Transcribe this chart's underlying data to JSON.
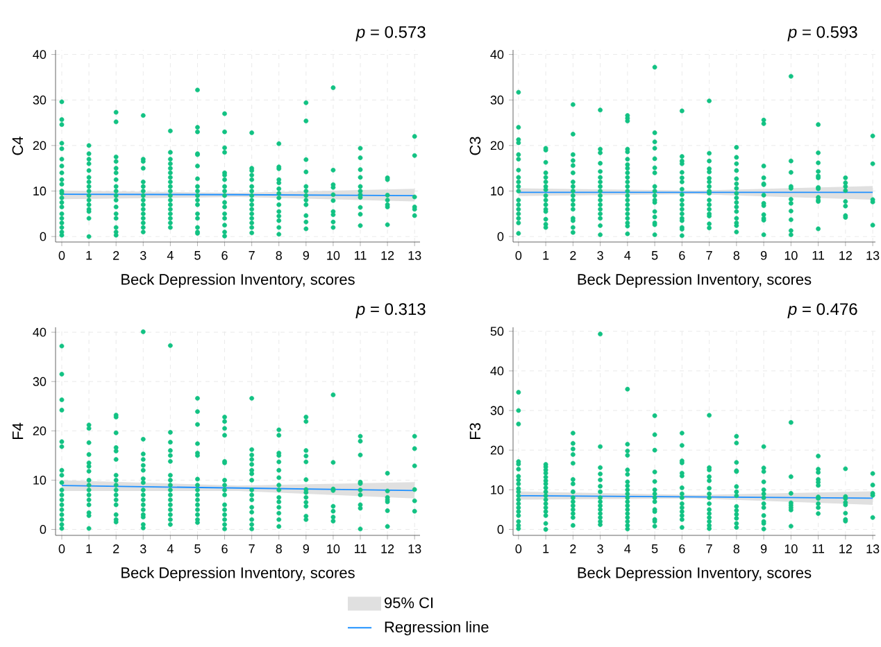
{
  "chart_data": [
    {
      "type": "scatter",
      "xlabel": "Beck Depression Inventory, scores",
      "ylabel": "C4",
      "annotations": [
        "*p* = 0.573"
      ],
      "xlim": [
        -0.23,
        13.2
      ],
      "ylim": [
        -1.2,
        41
      ],
      "xticks": [
        0,
        1,
        2,
        3,
        4,
        5,
        6,
        7,
        8,
        9,
        10,
        11,
        12,
        13
      ],
      "yticks": [
        0,
        10,
        20,
        30,
        40
      ],
      "grid": true,
      "series": [
        {
          "color": "#12c283",
          "x": [
            0,
            0,
            0,
            0,
            0,
            0,
            0,
            0,
            0,
            0,
            0,
            0,
            0,
            0,
            0,
            0,
            0,
            0,
            0,
            0,
            0,
            1,
            1,
            1,
            1,
            1,
            1,
            1,
            1,
            1,
            1,
            1,
            1,
            1,
            1,
            1,
            1,
            2,
            2,
            2,
            2,
            2,
            2,
            2,
            2,
            2,
            2,
            2,
            2,
            2,
            2,
            2,
            2,
            2,
            3,
            3,
            3,
            3,
            3,
            3,
            3,
            3,
            3,
            3,
            3,
            3,
            3,
            3,
            3,
            3,
            4,
            4,
            4,
            4,
            4,
            4,
            4,
            4,
            4,
            4,
            4,
            4,
            4,
            4,
            4,
            4,
            4,
            4,
            5,
            5,
            5,
            5,
            5,
            5,
            5,
            5,
            5,
            5,
            5,
            5,
            5,
            5,
            5,
            5,
            5,
            6,
            6,
            6,
            6,
            6,
            6,
            6,
            6,
            6,
            6,
            6,
            6,
            6,
            6,
            6,
            6,
            6,
            7,
            7,
            7,
            7,
            7,
            7,
            7,
            7,
            7,
            7,
            7,
            7,
            7,
            7,
            7,
            7,
            8,
            8,
            8,
            8,
            8,
            8,
            8,
            8,
            8,
            8,
            8,
            8,
            8,
            8,
            9,
            9,
            9,
            9,
            9,
            9,
            9,
            9,
            9,
            9,
            9,
            9,
            10,
            10,
            10,
            10,
            10,
            10,
            10,
            10,
            10,
            10,
            11,
            11,
            11,
            11,
            11,
            11,
            11,
            11,
            11,
            11,
            11,
            12,
            12,
            12,
            12,
            12,
            12,
            12,
            13,
            13,
            13,
            13,
            13,
            13
          ],
          "values": [
            29.6,
            25.7,
            24.6,
            20.5,
            19.3,
            17,
            15.5,
            14,
            12.5,
            11.5,
            10,
            9.5,
            8.5,
            7.5,
            6.5,
            5,
            4,
            3,
            2,
            1,
            0.3,
            20,
            18.2,
            17,
            16,
            14.5,
            13,
            12,
            11,
            10,
            9,
            8,
            7,
            6,
            5.5,
            4,
            0,
            27.3,
            25.2,
            17.5,
            16.5,
            15,
            14,
            12.5,
            11,
            10,
            9,
            8,
            6.5,
            5,
            4,
            2,
            1,
            0.3,
            26.6,
            17,
            16.5,
            15,
            12,
            11,
            10,
            9,
            8,
            7,
            6,
            5,
            4,
            3,
            2,
            1,
            23.2,
            18.5,
            17,
            16,
            15,
            14,
            13,
            12,
            11,
            10,
            9,
            8,
            7,
            6,
            5,
            4,
            3,
            2,
            32.2,
            24,
            23,
            18.2,
            18,
            15.5,
            12.7,
            11,
            10,
            9,
            8,
            7,
            5,
            4,
            2,
            1,
            0.7,
            27,
            23,
            19.5,
            18.5,
            14,
            13.5,
            12.5,
            11,
            10,
            9,
            7.5,
            6.5,
            5,
            4,
            2.5,
            1,
            0.1,
            22.8,
            15,
            14.5,
            13.5,
            12.5,
            11,
            10,
            9,
            8,
            7,
            6,
            5,
            4,
            3,
            2,
            0.8,
            20.4,
            15.3,
            14.9,
            12.5,
            11.8,
            10.5,
            9.5,
            8.5,
            7,
            5.5,
            4.5,
            3.5,
            2,
            0.5,
            29.4,
            25.4,
            16.9,
            14.2,
            11,
            10,
            9,
            8,
            7,
            4.6,
            3.2,
            1.7,
            32.7,
            14.6,
            11.4,
            10.8,
            9.2,
            7.9,
            5.5,
            4.8,
            3.2,
            2,
            19.4,
            17.3,
            14.7,
            13,
            11,
            10,
            9.2,
            8.6,
            6.4,
            4.9,
            2.4,
            12.9,
            12.5,
            9.1,
            8,
            7,
            6.5,
            2.6,
            22,
            17.8,
            8.7,
            6.5,
            6,
            4.6
          ]
        },
        {
          "type": "line",
          "marker": "none",
          "color": "#1e90ff",
          "x": [
            0,
            6.5,
            13
          ],
          "values": [
            9.3,
            9.2,
            9.0
          ],
          "lower": [
            8.2,
            8.7,
            7.7
          ],
          "upper": [
            10.1,
            9.6,
            10.5
          ]
        }
      ]
    },
    {
      "type": "scatter",
      "xlabel": "Beck Depression Inventory, scores",
      "ylabel": "C3",
      "annotations": [
        "*p* = 0.593"
      ],
      "xlim": [
        -0.2,
        13.1
      ],
      "ylim": [
        -1.2,
        41
      ],
      "xticks": [
        0,
        1,
        2,
        3,
        4,
        5,
        6,
        7,
        8,
        9,
        10,
        11,
        12,
        13
      ],
      "yticks": [
        0,
        10,
        20,
        30,
        40
      ],
      "grid": true,
      "series": [
        {
          "color": "#12c283",
          "x": [
            0,
            0,
            0,
            0,
            0,
            0,
            0,
            0,
            0,
            0,
            0,
            0,
            0,
            0,
            0,
            0,
            0,
            0,
            1,
            1,
            1,
            1,
            1,
            1,
            1,
            1,
            1,
            1,
            1,
            1,
            1,
            1,
            1,
            1,
            2,
            2,
            2,
            2,
            2,
            2,
            2,
            2,
            2,
            2,
            2,
            2,
            2,
            2,
            2,
            2,
            2,
            3,
            3,
            3,
            3,
            3,
            3,
            3,
            3,
            3,
            3,
            3,
            3,
            3,
            3,
            3,
            3,
            3,
            4,
            4,
            4,
            4,
            4,
            4,
            4,
            4,
            4,
            4,
            4,
            4,
            4,
            4,
            4,
            4,
            4,
            4,
            4,
            4,
            4,
            4,
            5,
            5,
            5,
            5,
            5,
            5,
            5,
            5,
            5,
            5,
            5,
            5,
            5,
            5,
            5,
            5,
            5,
            6,
            6,
            6,
            6,
            6,
            6,
            6,
            6,
            6,
            6,
            6,
            6,
            6,
            6,
            6,
            6,
            6,
            6,
            7,
            7,
            7,
            7,
            7,
            7,
            7,
            7,
            7,
            7,
            7,
            7,
            7,
            7,
            7,
            7,
            7,
            8,
            8,
            8,
            8,
            8,
            8,
            8,
            8,
            8,
            8,
            8,
            8,
            8,
            8,
            8,
            8,
            9,
            9,
            9,
            9,
            9,
            9,
            9,
            9,
            9,
            9,
            9,
            9,
            9,
            10,
            10,
            10,
            10,
            10,
            10,
            10,
            10,
            10,
            10,
            10,
            11,
            11,
            11,
            11,
            11,
            11,
            11,
            11,
            11,
            11,
            11,
            11,
            12,
            12,
            12,
            12,
            12,
            12,
            12,
            12,
            13,
            13,
            13,
            13,
            13
          ],
          "values": [
            31.7,
            24,
            21.3,
            20.6,
            18,
            17,
            14.6,
            13,
            12,
            11,
            10,
            8,
            7,
            6,
            5,
            4,
            3,
            0.7,
            19.4,
            19,
            16.3,
            14,
            13,
            12,
            11,
            10.3,
            9,
            8,
            7,
            6,
            5.5,
            3.8,
            2.7,
            2,
            29,
            22.5,
            18,
            16.7,
            15.6,
            14,
            12,
            11,
            10,
            9,
            8,
            7,
            6,
            4,
            3.5,
            2,
            0.9,
            27.8,
            19.2,
            18.4,
            16.1,
            14.3,
            13,
            12,
            11,
            10,
            9,
            8,
            7,
            6,
            5,
            4,
            2.4,
            0.4,
            26.6,
            26,
            25.4,
            19.2,
            18.6,
            17,
            15.8,
            15,
            14,
            13,
            12,
            11,
            10,
            9,
            8,
            7,
            6,
            5,
            4,
            3,
            2.3,
            0.6,
            37.2,
            22.8,
            20.8,
            19.4,
            17.1,
            15.1,
            14,
            11,
            10,
            9,
            8,
            7.5,
            5.5,
            4.3,
            3,
            2.6,
            0.4,
            27.6,
            17.6,
            16.6,
            16,
            14.1,
            12.9,
            12,
            10.4,
            9.2,
            8,
            7,
            6,
            5,
            4,
            3.5,
            2,
            1.6,
            0.2,
            29.8,
            18.3,
            16.6,
            14.9,
            14.2,
            12.8,
            12,
            11,
            10,
            9.5,
            8,
            7,
            6,
            5,
            4.5,
            2.8,
            1.9,
            19.6,
            17.4,
            16,
            14.5,
            12.7,
            11.6,
            10.6,
            9.5,
            8.5,
            7.5,
            6.5,
            5.5,
            4,
            3,
            2.4,
            1,
            25.6,
            24.8,
            15.5,
            12.9,
            11.6,
            11.4,
            9.1,
            7.3,
            6.8,
            4.8,
            4,
            3.6,
            0.4,
            35.2,
            16.6,
            14.1,
            11,
            10.6,
            8.2,
            7.3,
            5.6,
            3.7,
            1.3,
            0.4,
            24.6,
            18.4,
            16.2,
            14.3,
            13.3,
            12.9,
            10.8,
            10.5,
            8.6,
            8,
            7.7,
            1.7,
            12.9,
            11.8,
            11,
            10.1,
            7.7,
            6.7,
            4.6,
            4.2,
            22.1,
            16,
            8.1,
            7.6,
            2.5
          ]
        },
        {
          "type": "line",
          "marker": "none",
          "color": "#1e90ff",
          "x": [
            0,
            6.5,
            13
          ],
          "values": [
            9.7,
            9.7,
            9.7
          ],
          "lower": [
            8.9,
            9.3,
            8.1
          ],
          "upper": [
            10.6,
            10.1,
            11.1
          ]
        }
      ]
    },
    {
      "type": "scatter",
      "xlabel": "Beck Depression Inventory, scores",
      "ylabel": "F4",
      "annotations": [
        "*p* = 0.313"
      ],
      "xlim": [
        -0.23,
        13.2
      ],
      "ylim": [
        -1.2,
        41
      ],
      "xticks": [
        0,
        1,
        2,
        3,
        4,
        5,
        6,
        7,
        8,
        9,
        10,
        11,
        12,
        13
      ],
      "yticks": [
        0,
        10,
        20,
        30,
        40
      ],
      "grid": true,
      "series": [
        {
          "color": "#12c283",
          "x": [
            0,
            0,
            0,
            0,
            0,
            0,
            0,
            0,
            0,
            0,
            0,
            0,
            0,
            0,
            0,
            0,
            0,
            0,
            1,
            1,
            1,
            1,
            1,
            1,
            1,
            1,
            1,
            1,
            1,
            1,
            1,
            1,
            1,
            1,
            2,
            2,
            2,
            2,
            2,
            2,
            2,
            2,
            2,
            2,
            2,
            2,
            2,
            2,
            2,
            2,
            3,
            3,
            3,
            3,
            3,
            3,
            3,
            3,
            3,
            3,
            3,
            3,
            3,
            3,
            3,
            3,
            3,
            4,
            4,
            4,
            4,
            4,
            4,
            4,
            4,
            4,
            4,
            4,
            4,
            4,
            4,
            4,
            4,
            4,
            5,
            5,
            5,
            5,
            5,
            5,
            5,
            5,
            5,
            5,
            5,
            5,
            5,
            5,
            5,
            5,
            6,
            6,
            6,
            6,
            6,
            6,
            6,
            6,
            6,
            6,
            6,
            6,
            6,
            6,
            6,
            6,
            7,
            7,
            7,
            7,
            7,
            7,
            7,
            7,
            7,
            7,
            7,
            7,
            7,
            7,
            7,
            7,
            8,
            8,
            8,
            8,
            8,
            8,
            8,
            8,
            8,
            8,
            8,
            8,
            8,
            8,
            8,
            9,
            9,
            9,
            9,
            9,
            9,
            9,
            9,
            9,
            9,
            9,
            9,
            9,
            10,
            10,
            10,
            10,
            10,
            10,
            10,
            10,
            11,
            11,
            11,
            11,
            11,
            11,
            11,
            11,
            11,
            11,
            12,
            12,
            12,
            12,
            12,
            12,
            12,
            13,
            13,
            13,
            13,
            13,
            13
          ],
          "values": [
            37.2,
            31.5,
            26.3,
            24.2,
            17.8,
            16.8,
            12,
            11,
            9.5,
            8,
            7,
            6,
            5,
            4,
            3,
            2,
            1,
            0.2,
            21.2,
            20.5,
            17.6,
            15.2,
            13.5,
            12.8,
            11.8,
            10,
            9,
            8,
            7,
            6,
            5,
            3.4,
            2.8,
            0.2,
            23.2,
            22.8,
            19.6,
            16.6,
            15.9,
            14.2,
            11,
            10,
            9,
            8,
            7,
            6,
            5,
            3,
            2,
            1.5,
            40.1,
            18.3,
            15.3,
            14.2,
            13,
            12,
            10.3,
            9.5,
            8,
            7,
            6,
            5,
            4,
            3,
            2.5,
            1,
            0.3,
            37.3,
            19.7,
            17.7,
            16,
            15,
            13.8,
            11,
            10,
            9,
            8,
            7,
            6,
            5,
            4,
            3,
            2,
            1,
            26.6,
            23.9,
            21.3,
            17.4,
            15.5,
            15,
            10.2,
            9,
            8,
            7,
            6,
            5,
            4,
            3,
            2,
            1.4,
            22.8,
            21.9,
            20.5,
            19.1,
            13.8,
            13.5,
            10,
            9,
            8,
            7,
            5,
            4,
            3,
            2,
            1,
            0.1,
            26.6,
            16.2,
            15.1,
            14.2,
            13.2,
            12,
            11.3,
            10,
            8,
            7,
            6,
            4.5,
            3.5,
            2,
            1,
            0.1,
            20.2,
            19.1,
            15.5,
            15,
            13.7,
            12,
            10.5,
            9,
            8,
            6.5,
            5.6,
            4.5,
            3.3,
            2,
            0.6,
            22.8,
            21.9,
            16,
            14.9,
            13.7,
            10.1,
            8.1,
            7.5,
            6.5,
            5.5,
            4.7,
            2.7,
            2,
            27.3,
            13.6,
            8.2,
            7.9,
            4.7,
            3.7,
            2.5,
            1.7,
            18.9,
            17.9,
            15.1,
            9.6,
            9.3,
            8,
            7,
            5,
            4.3,
            0.1,
            11.4,
            7.8,
            6.5,
            6,
            5.6,
            3.8,
            0.6,
            18.9,
            16.4,
            12.9,
            8.1,
            5.8,
            3.7
          ]
        },
        {
          "type": "line",
          "marker": "none",
          "color": "#1e90ff",
          "x": [
            0,
            6.5,
            13
          ],
          "values": [
            8.9,
            8.4,
            7.9
          ],
          "lower": [
            7.8,
            7.8,
            6.3
          ],
          "upper": [
            10,
            8.9,
            9.6
          ]
        }
      ]
    },
    {
      "type": "scatter",
      "xlabel": "Beck Depression Inventory, scores",
      "ylabel": "F3",
      "annotations": [
        "*p* = 0.476",
        "95% CI"
      ],
      "xlim": [
        -0.2,
        13.1
      ],
      "ylim": [
        -1.5,
        51
      ],
      "xticks": [
        0,
        1,
        2,
        3,
        4,
        5,
        6,
        7,
        8,
        9,
        10,
        11,
        12,
        13
      ],
      "yticks": [
        0,
        10,
        20,
        30,
        40,
        50
      ],
      "grid": true,
      "legend": "bottom",
      "series": [
        {
          "color": "#12c283",
          "x": [
            0,
            0,
            0,
            0,
            0,
            0,
            0,
            0,
            0,
            0,
            0,
            0,
            0,
            0,
            0,
            0,
            0,
            0,
            0,
            0,
            1,
            1,
            1,
            1,
            1,
            1,
            1,
            1,
            1,
            1,
            1,
            1,
            1,
            1,
            1,
            1,
            1,
            2,
            2,
            2,
            2,
            2,
            2,
            2,
            2,
            2,
            2,
            2,
            2,
            2,
            2,
            2,
            3,
            3,
            3,
            3,
            3,
            3,
            3,
            3,
            3,
            3,
            3,
            3,
            3,
            3,
            3,
            4,
            4,
            4,
            4,
            4,
            4,
            4,
            4,
            4,
            4,
            4,
            4,
            4,
            4,
            4,
            4,
            4,
            4,
            4,
            5,
            5,
            5,
            5,
            5,
            5,
            5,
            5,
            5,
            5,
            5,
            5,
            5,
            5,
            6,
            6,
            6,
            6,
            6,
            6,
            6,
            6,
            6,
            6,
            6,
            6,
            6,
            6,
            6,
            7,
            7,
            7,
            7,
            7,
            7,
            7,
            7,
            7,
            7,
            7,
            7,
            7,
            7,
            7,
            8,
            8,
            8,
            8,
            8,
            8,
            8,
            8,
            8,
            8,
            8,
            8,
            8,
            8,
            9,
            9,
            9,
            9,
            9,
            9,
            9,
            9,
            9,
            9,
            9,
            9,
            9,
            10,
            10,
            10,
            10,
            10,
            10,
            10,
            10,
            11,
            11,
            11,
            11,
            11,
            11,
            11,
            11,
            11,
            11,
            11,
            12,
            12,
            12,
            12,
            12,
            12,
            12,
            12,
            13,
            13,
            13,
            13,
            13
          ],
          "values": [
            34.6,
            30,
            26.6,
            17.1,
            16.5,
            15.2,
            13.4,
            12.5,
            11.5,
            10.3,
            9.5,
            8.5,
            7.5,
            6.5,
            5.5,
            4.5,
            3.5,
            2,
            1,
            0.2,
            16.4,
            15.8,
            15,
            14.2,
            13.2,
            12.3,
            11.5,
            10.5,
            9.5,
            8.5,
            7.5,
            6.5,
            5.5,
            4.5,
            3.5,
            1.5,
            0,
            24.3,
            21.7,
            20.3,
            18.9,
            16.7,
            12.6,
            11.5,
            9.5,
            8,
            7,
            6,
            5,
            4,
            3,
            1,
            49.3,
            20.9,
            15.6,
            14,
            12.5,
            10.9,
            9.5,
            8,
            7,
            6,
            5,
            4,
            3,
            2,
            1.2,
            35.4,
            21.5,
            19.8,
            18.7,
            15,
            13.9,
            12,
            11,
            10,
            9,
            8,
            7,
            6,
            5,
            4,
            3,
            2,
            1,
            0.1,
            28.7,
            23.9,
            20,
            14.5,
            12.1,
            10,
            9,
            8,
            7,
            5,
            4.5,
            2.5,
            2,
            0.8,
            24.3,
            21.2,
            17.3,
            16.8,
            14.2,
            13.5,
            10.5,
            9,
            8,
            6.5,
            5.5,
            4.5,
            3.5,
            2.5,
            0.5,
            28.8,
            15.6,
            15,
            13.3,
            12.3,
            10.4,
            9,
            8,
            6.5,
            5,
            4,
            3,
            2,
            1,
            0.2,
            23.5,
            21.8,
            16.9,
            14.8,
            14.6,
            10.8,
            9.5,
            8.5,
            5.8,
            4.8,
            3.8,
            2.8,
            1.5,
            0.5,
            20.9,
            15.5,
            14.6,
            12,
            10,
            9,
            8,
            6.5,
            5.5,
            3.5,
            2,
            1.5,
            0.1,
            27,
            13.3,
            9.1,
            6.7,
            6.1,
            5.5,
            4.9,
            0.8,
            18.5,
            15.2,
            14.4,
            12.6,
            11.9,
            11.1,
            8.2,
            7.8,
            6.5,
            5.5,
            4,
            15.3,
            8.3,
            7.8,
            6.8,
            6.2,
            4.1,
            2.5,
            2.1,
            14.1,
            11.2,
            9.1,
            8.6,
            3
          ]
        },
        {
          "type": "line",
          "name": "Regression line",
          "marker": "none",
          "color": "#1e90ff",
          "x": [
            0,
            6.5,
            13
          ],
          "values": [
            8.5,
            8.2,
            7.9
          ],
          "lower": [
            7.5,
            7.8,
            6.2
          ],
          "upper": [
            9.6,
            8.7,
            9.6
          ]
        }
      ]
    }
  ]
}
